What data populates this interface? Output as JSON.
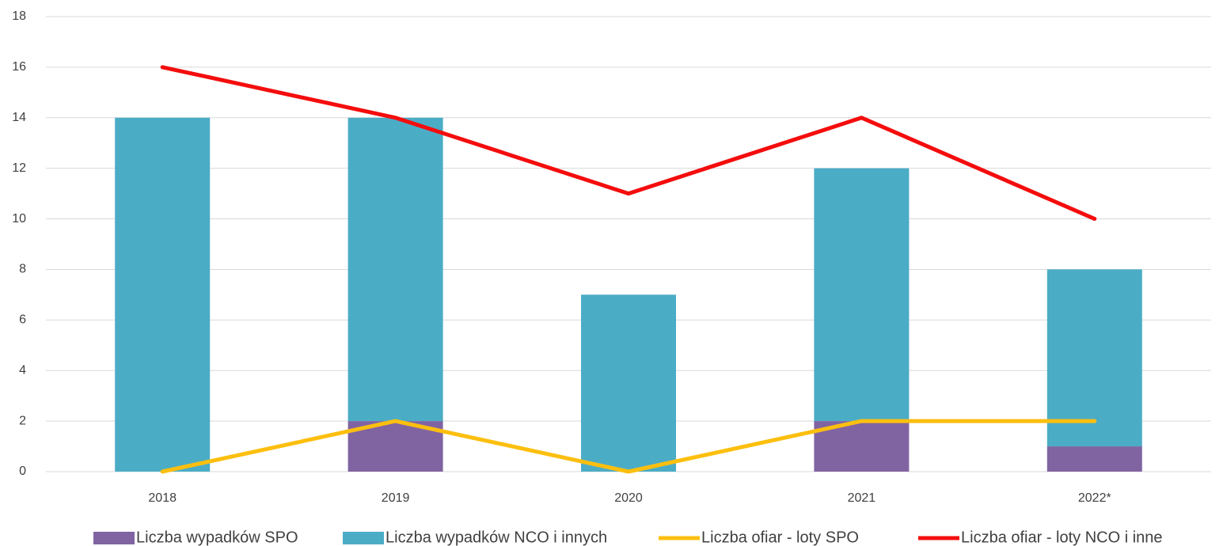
{
  "chart_data": {
    "type": "bar",
    "stacked": true,
    "categories": [
      "2018",
      "2019",
      "2020",
      "2021",
      "2022*"
    ],
    "series": [
      {
        "name": "Liczba wypadków SPO",
        "color": "#8064a2",
        "kind": "bar",
        "values": [
          0,
          2,
          0,
          2,
          1
        ]
      },
      {
        "name": "Liczba wypadków NCO i innych",
        "color": "#4bacc6",
        "kind": "bar",
        "values": [
          14,
          12,
          7,
          10,
          7
        ]
      },
      {
        "name": "Liczba ofiar - loty SPO",
        "color": "#fcbf0f",
        "kind": "line",
        "values": [
          0,
          2,
          0,
          2,
          2
        ]
      },
      {
        "name": "Liczba ofiar - loty NCO i inne",
        "color": "#f40d0d",
        "kind": "line",
        "values": [
          16,
          14,
          11,
          14,
          10
        ]
      }
    ],
    "ylim": [
      0,
      18
    ],
    "yticks": [
      0,
      2,
      4,
      6,
      8,
      10,
      12,
      14,
      16,
      18
    ],
    "grid": true,
    "legend": "bottom"
  }
}
